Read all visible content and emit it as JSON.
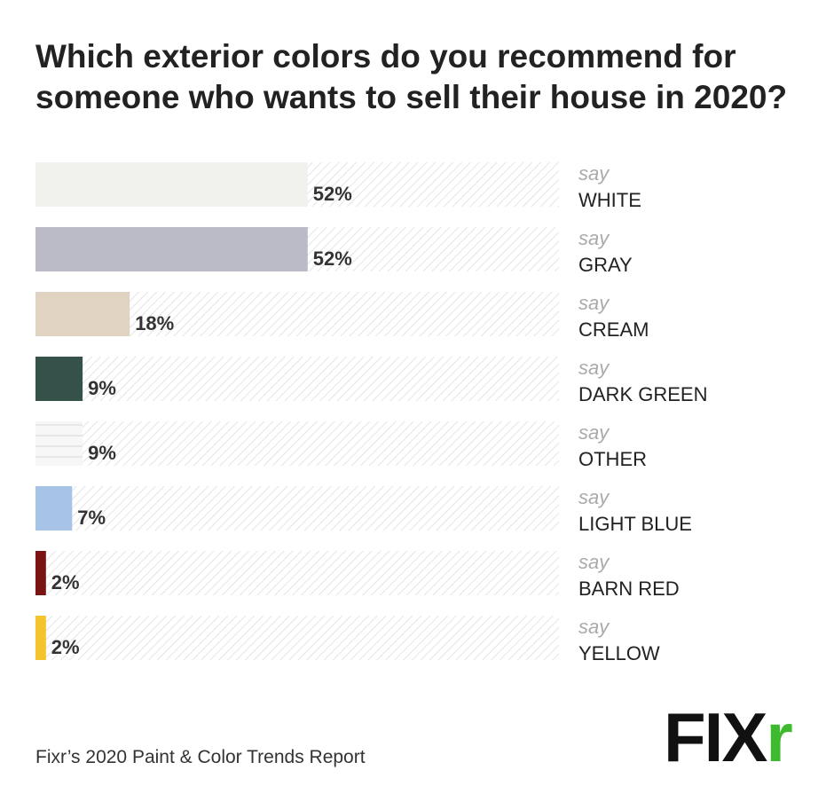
{
  "chart_data": {
    "type": "bar",
    "title": [
      "Which exterior colors do you recommend for",
      "someone who wants to sell their house in 2020?"
    ],
    "label_prefix": "say",
    "categories": [
      "WHITE",
      "GRAY",
      "CREAM",
      "DARK GREEN",
      "OTHER",
      "LIGHT BLUE",
      "BARN RED",
      "YELLOW"
    ],
    "values": [
      52,
      52,
      18,
      9,
      9,
      7,
      2,
      2
    ],
    "value_labels": [
      "52%",
      "52%",
      "18%",
      "9%",
      "9%",
      "7%",
      "2%",
      "2%"
    ],
    "colors": [
      "#f1f1ee",
      "#babbc6",
      "#e0d3c1",
      "#35514a",
      "url(#lined)",
      "#a7c4e8",
      "#7a1414",
      "#f5c32c"
    ],
    "xlim": [
      0,
      100
    ],
    "source": "Fixr’s 2020 Paint & Color Trends Report",
    "logo_parts": [
      "FIX",
      "r"
    ]
  }
}
